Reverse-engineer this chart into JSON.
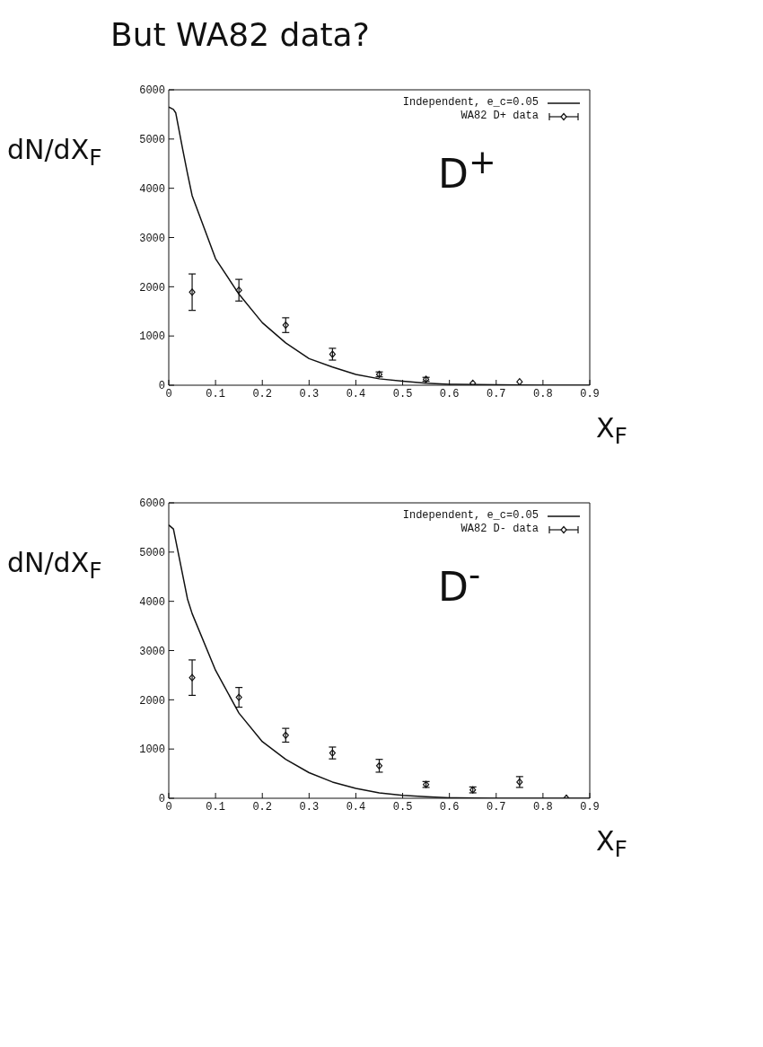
{
  "chart_data": [
    {
      "type": "line",
      "title": "But WA82 data?",
      "xlabel": "X$_{F}$",
      "ylabel": "dN/dX$_{F}$",
      "annotations": [
        "D$^{+}$"
      ],
      "xlim": [
        0,
        0.9
      ],
      "ylim": [
        0,
        6000
      ],
      "xticks": [
        0,
        0.1,
        0.2,
        0.3,
        0.4,
        0.5,
        0.6,
        0.7,
        0.8,
        0.9
      ],
      "yticks": [
        0,
        1000,
        2000,
        3000,
        4000,
        5000,
        6000
      ],
      "legend": "top right",
      "grid": false,
      "series": [
        {
          "name": "Independent, e_c=0.05",
          "type": "line",
          "color": "#111111",
          "marker": "none",
          "x": [
            0,
            0.01,
            0.015,
            0.03,
            0.04,
            0.05,
            0.1,
            0.15,
            0.2,
            0.25,
            0.3,
            0.35,
            0.4,
            0.45,
            0.5,
            0.55,
            0.6,
            0.7,
            0.8,
            0.9
          ],
          "values": [
            5650,
            5600,
            5530,
            4780,
            4300,
            3850,
            2570,
            1850,
            1270,
            860,
            540,
            370,
            220,
            130,
            80,
            40,
            20,
            10,
            0,
            0
          ]
        },
        {
          "name": "WA82 D+ data",
          "type": "scatter",
          "color": "#111111",
          "marker": "diamond",
          "x": [
            0.05,
            0.15,
            0.25,
            0.35,
            0.45,
            0.55,
            0.65,
            0.75
          ],
          "values": [
            1890,
            1930,
            1220,
            630,
            220,
            120,
            40,
            70
          ],
          "errors": [
            370,
            220,
            150,
            120,
            50,
            40,
            null,
            null
          ]
        }
      ]
    },
    {
      "type": "line",
      "xlabel": "X$_{F}$",
      "ylabel": "dN/dX$_{F}$",
      "annotations": [
        "D$^{-}$"
      ],
      "xlim": [
        0,
        0.9
      ],
      "ylim": [
        0,
        6000
      ],
      "xticks": [
        0,
        0.1,
        0.2,
        0.3,
        0.4,
        0.5,
        0.6,
        0.7,
        0.8,
        0.9
      ],
      "yticks": [
        0,
        1000,
        2000,
        3000,
        4000,
        5000,
        6000
      ],
      "legend": "top right",
      "grid": false,
      "series": [
        {
          "name": "Independent, e_c=0.05",
          "type": "line",
          "color": "#111111",
          "marker": "none",
          "x": [
            0,
            0.01,
            0.02,
            0.04,
            0.05,
            0.1,
            0.15,
            0.2,
            0.25,
            0.3,
            0.35,
            0.4,
            0.45,
            0.5,
            0.55,
            0.6,
            0.7,
            0.8,
            0.9
          ],
          "values": [
            5550,
            5470,
            5000,
            4050,
            3750,
            2600,
            1730,
            1150,
            790,
            520,
            330,
            200,
            110,
            60,
            30,
            10,
            0,
            0,
            0
          ]
        },
        {
          "name": "WA82 D- data",
          "type": "scatter",
          "color": "#111111",
          "marker": "diamond",
          "x": [
            0.05,
            0.15,
            0.25,
            0.35,
            0.45,
            0.55,
            0.65,
            0.75,
            0.85
          ],
          "values": [
            2450,
            2050,
            1280,
            920,
            660,
            280,
            170,
            330,
            0
          ],
          "errors": [
            360,
            200,
            140,
            120,
            130,
            60,
            60,
            110,
            null
          ]
        }
      ]
    }
  ]
}
